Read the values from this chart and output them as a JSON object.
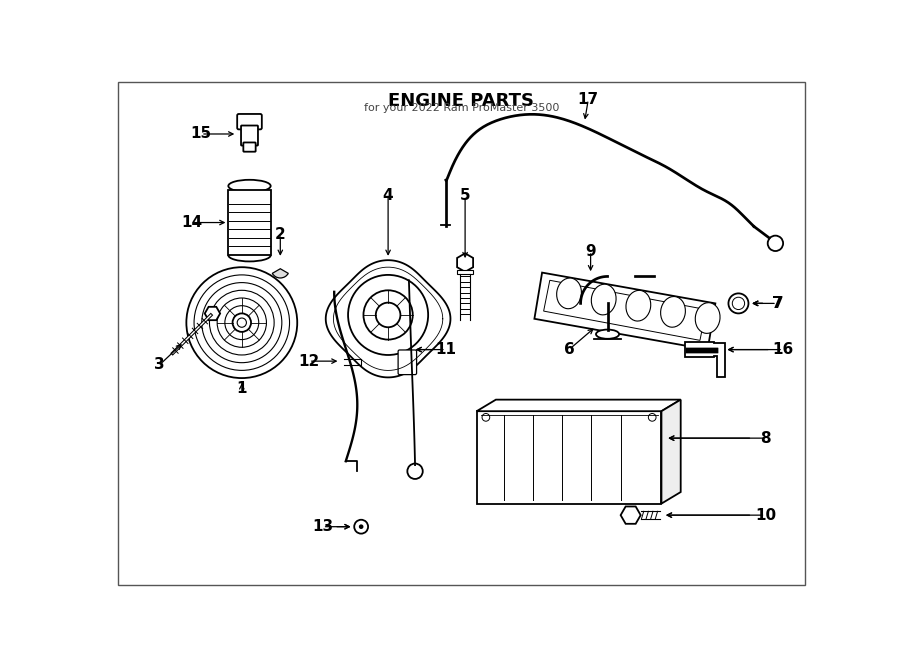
{
  "title": "ENGINE PARTS",
  "subtitle": "for your 2022 Ram ProMaster 3500",
  "bg_color": "#ffffff",
  "line_color": "#000000",
  "figsize": [
    9.0,
    6.61
  ],
  "dpi": 100
}
